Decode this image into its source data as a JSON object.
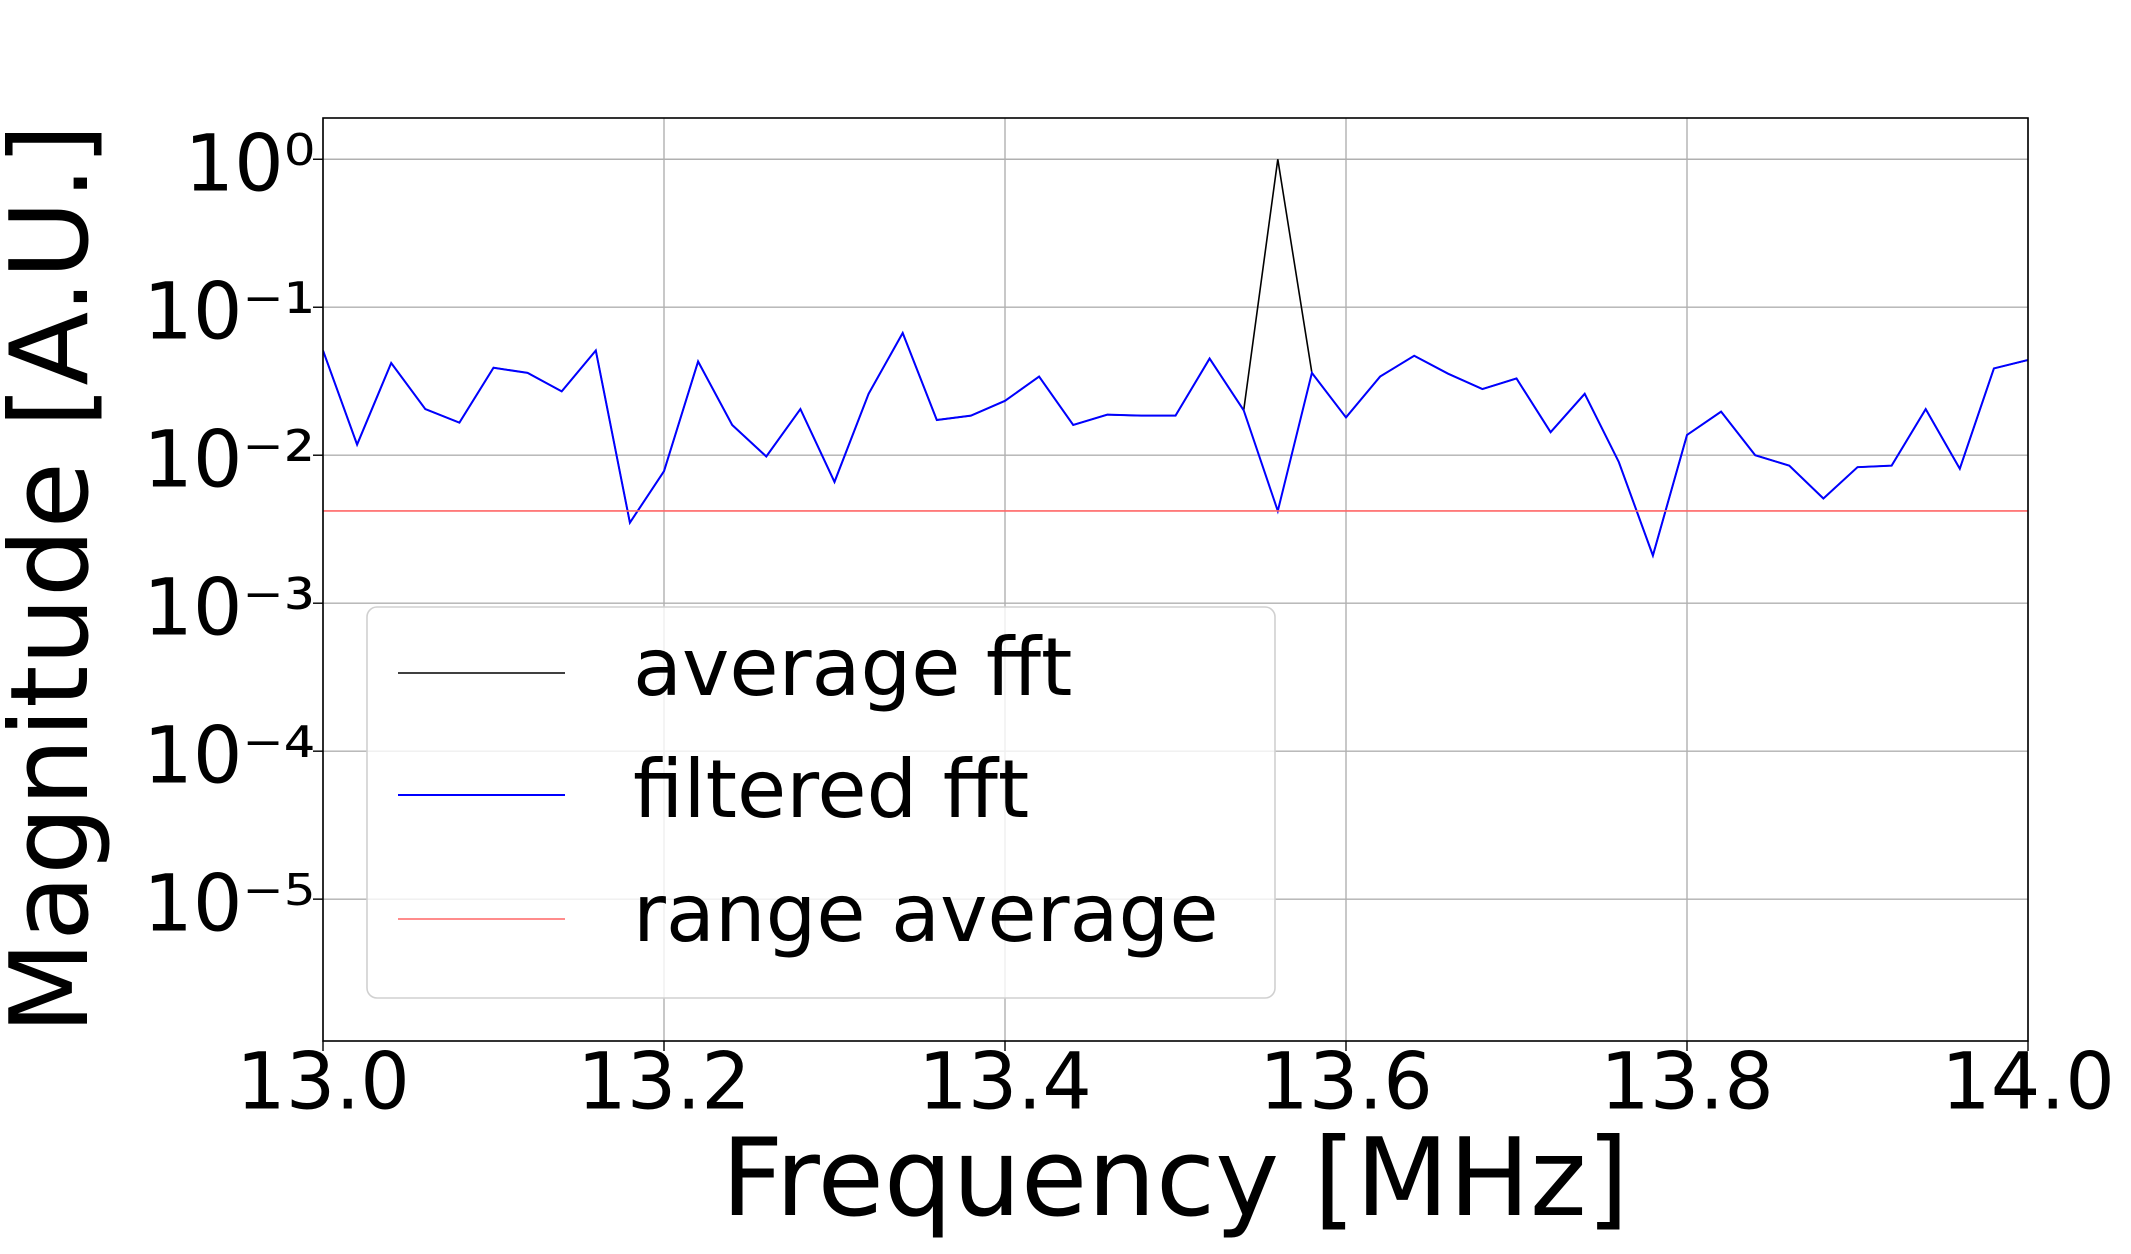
{
  "chart_data": {
    "type": "line",
    "x_label": "Frequency [MHz]",
    "y_label": "Magnitude [A.U.]",
    "log_y": true,
    "grid": true,
    "legend": "lower left",
    "x": [
      13.0,
      13.02,
      13.04,
      13.06,
      13.08,
      13.1,
      13.12,
      13.14,
      13.16,
      13.18,
      13.2,
      13.22,
      13.24,
      13.26,
      13.28,
      13.3,
      13.32,
      13.34,
      13.36,
      13.38,
      13.4,
      13.42,
      13.44,
      13.46,
      13.48,
      13.5,
      13.52,
      13.54,
      13.56,
      13.58,
      13.6,
      13.62,
      13.64,
      13.66,
      13.68,
      13.7,
      13.72,
      13.74,
      13.76,
      13.78,
      13.8,
      13.82,
      13.84,
      13.86,
      13.88,
      13.9,
      13.92,
      13.94,
      13.96,
      13.98,
      14.0
    ],
    "series": [
      {
        "name": "average fft",
        "color": "#000000",
        "values": [
          0.051,
          0.0118,
          0.042,
          0.0205,
          0.0166,
          0.039,
          0.036,
          0.027,
          0.051,
          0.0035,
          0.0078,
          0.043,
          0.016,
          0.0098,
          0.0205,
          0.0066,
          0.026,
          0.067,
          0.0173,
          0.0185,
          0.0233,
          0.034,
          0.016,
          0.0188,
          0.0185,
          0.0185,
          0.045,
          0.0201,
          1.0,
          0.036,
          0.018,
          0.034,
          0.047,
          0.0355,
          0.028,
          0.033,
          0.0143,
          0.026,
          0.009,
          0.0021,
          0.0137,
          0.0197,
          0.01,
          0.0085,
          0.0051,
          0.0083,
          0.0085,
          0.0205,
          0.0081,
          0.0386,
          0.044
        ]
      },
      {
        "name": "filtered fft",
        "color": "#0000ff",
        "values": [
          0.051,
          0.0118,
          0.042,
          0.0205,
          0.0166,
          0.039,
          0.036,
          0.027,
          0.051,
          0.0035,
          0.0078,
          0.043,
          0.016,
          0.0098,
          0.0205,
          0.0066,
          0.026,
          0.067,
          0.0173,
          0.0185,
          0.0233,
          0.034,
          0.016,
          0.0188,
          0.0185,
          0.0185,
          0.045,
          0.0201,
          0.0042,
          0.036,
          0.018,
          0.034,
          0.047,
          0.0355,
          0.028,
          0.033,
          0.0143,
          0.026,
          0.009,
          0.0021,
          0.0137,
          0.0197,
          0.01,
          0.0085,
          0.0051,
          0.0083,
          0.0085,
          0.0205,
          0.0081,
          0.0386,
          0.044
        ]
      },
      {
        "name": "range average",
        "color": "#ff6666",
        "x": [
          13.0,
          14.0
        ],
        "values": [
          0.0042,
          0.0042
        ]
      }
    ],
    "xlim": [
      13.0,
      14.0
    ],
    "xticks": [
      {
        "value": 13.0,
        "label": "13.0"
      },
      13.2,
      13.4,
      13.6,
      13.8,
      {
        "value": 14.0,
        "label": "14.0"
      }
    ],
    "ylim": [
      1.1e-06,
      1.9
    ],
    "yticks": [
      {
        "value": 1,
        "label": "10⁰"
      },
      {
        "value": 0.1,
        "label": "10⁻¹"
      },
      {
        "value": 0.01,
        "label": "10⁻²"
      },
      {
        "value": 0.001,
        "label": "10⁻³"
      },
      {
        "value": 0.0001,
        "label": "10⁻⁴"
      },
      {
        "value": 1e-05,
        "label": "10⁻⁵"
      }
    ]
  }
}
